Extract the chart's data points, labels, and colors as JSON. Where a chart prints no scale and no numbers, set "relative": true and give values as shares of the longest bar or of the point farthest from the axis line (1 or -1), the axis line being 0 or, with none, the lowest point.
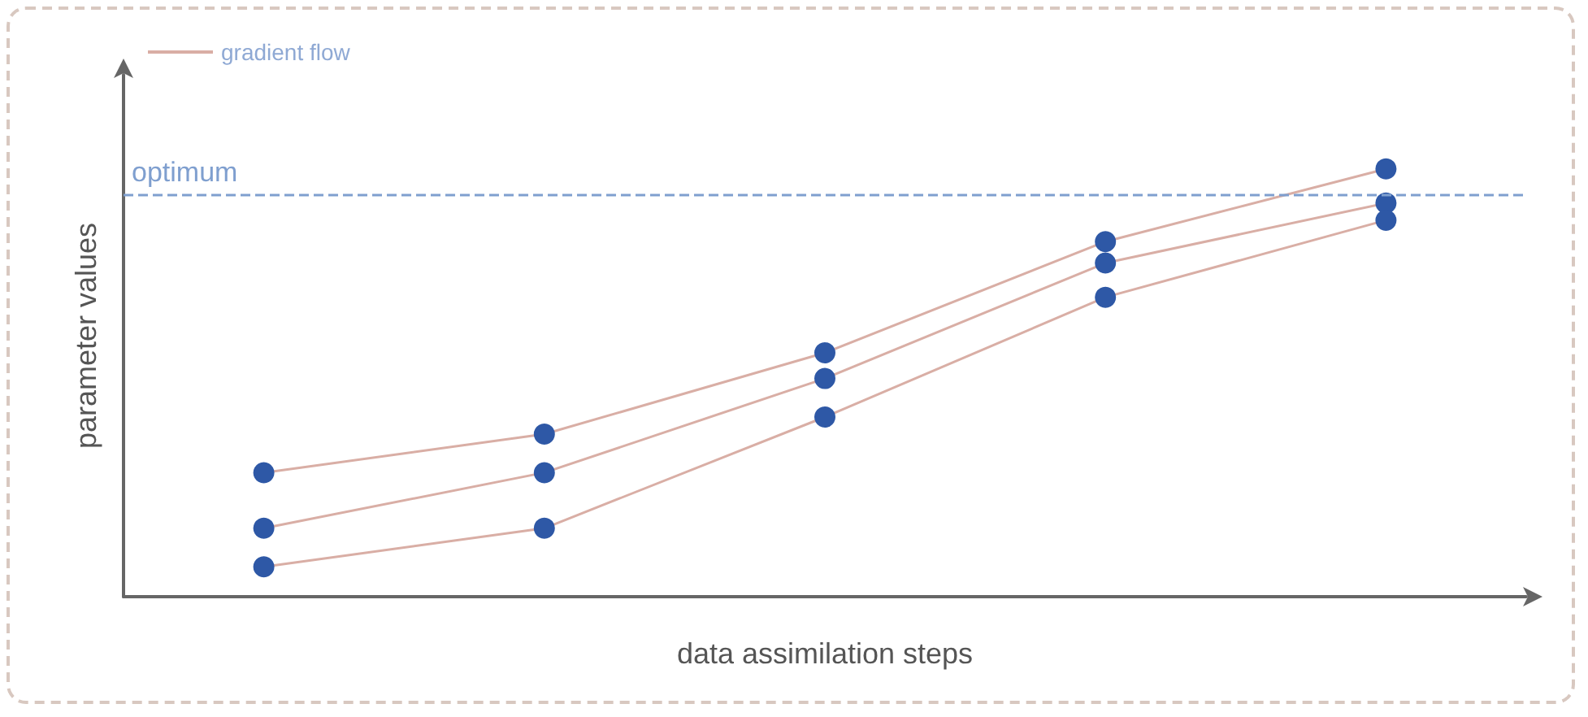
{
  "chart_data": {
    "type": "line",
    "relative": true,
    "xlabel": "data assimilation steps",
    "ylabel": "parameter values",
    "categories": [
      null,
      null,
      null,
      null,
      null
    ],
    "series": [
      {
        "name": "gradient flow",
        "color": "#d9aea5",
        "colors": [
          "#2e58a6",
          "#2e58a6",
          "#2e58a6",
          "#2e58a6",
          "#2e58a6"
        ],
        "values": [
          0.29,
          0.38,
          0.57,
          0.83,
          1
        ]
      },
      {
        "color": "#d9aea5",
        "colors": [
          "#2e58a6",
          "#2e58a6",
          "#2e58a6",
          "#2e58a6",
          "#2e58a6"
        ],
        "values": [
          0.16,
          0.29,
          0.51,
          0.78,
          0.92
        ]
      },
      {
        "color": "#d9aea5",
        "colors": [
          "#2e58a6",
          "#2e58a6",
          "#2e58a6",
          "#2e58a6",
          "#2e58a6"
        ],
        "values": [
          0.07,
          0.16,
          0.42,
          0.7,
          0.88
        ]
      }
    ],
    "ref_lines": [
      {
        "axis": "y",
        "value": 0.94,
        "label": "optimum",
        "color": "#7f9fcf",
        "line_style": "dashed"
      }
    ],
    "marker": "circle",
    "legend": "top left",
    "grid": false
  }
}
